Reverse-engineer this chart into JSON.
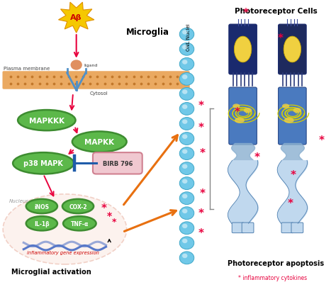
{
  "bg_color": "#ffffff",
  "microglia_label": "Microglia",
  "photoreceptor_label": "Photoreceptor Cells",
  "plasma_membrane_label": "Plasma membrane",
  "cytosol_label": "Cytosol",
  "ligand_label": "ligand",
  "nucleus_label": "Nucleus",
  "mapkkk_label": "MAPKKK",
  "mapkk_label": "MAPKK",
  "p38_label": "p38 MAPK",
  "birb_label": "BIRB 796",
  "inos_label": "iNOS",
  "cox2_label": "COX-2",
  "il1b_label": "IL-1β",
  "tnfa_label": "TNF-α",
  "gene_label": "inflammatory gene expression",
  "micro_act_label": "Microglial activation",
  "photo_apo_label": "Photoreceptor apoptosis",
  "onl_label": "ONL Nuclei",
  "inflam_label": "* inflammatory cytokines",
  "abeta_label": "Aβ",
  "arrow_pink": "#e8003d",
  "arrow_orange": "#e87010",
  "arrow_blue": "#1f5caa",
  "green_dark": "#3d8c30",
  "green_fill": "#5cb84a",
  "green_light": "#8cd878",
  "pink_border": "#d08090",
  "pink_fill": "#f0c8d0",
  "membrane_color": "#e8a050",
  "nucleus_color": "#fbe8e0",
  "nucleus_border": "#e8b0a0",
  "onl_blue": "#70c8e8",
  "asterisk_color": "#e8003d",
  "gene_blue": "#5878c8",
  "cell_dark_blue": "#1a2a6e",
  "cell_mid_blue": "#2a4a9a",
  "cell_inner_blue": "#4a7abf",
  "cell_light_blue": "#8ab0d0",
  "cell_pale_blue": "#c0d8ee",
  "cell_white": "#e8f0f8",
  "yellow_nucleus": "#f0d040",
  "yellow_dark": "#c8a800"
}
